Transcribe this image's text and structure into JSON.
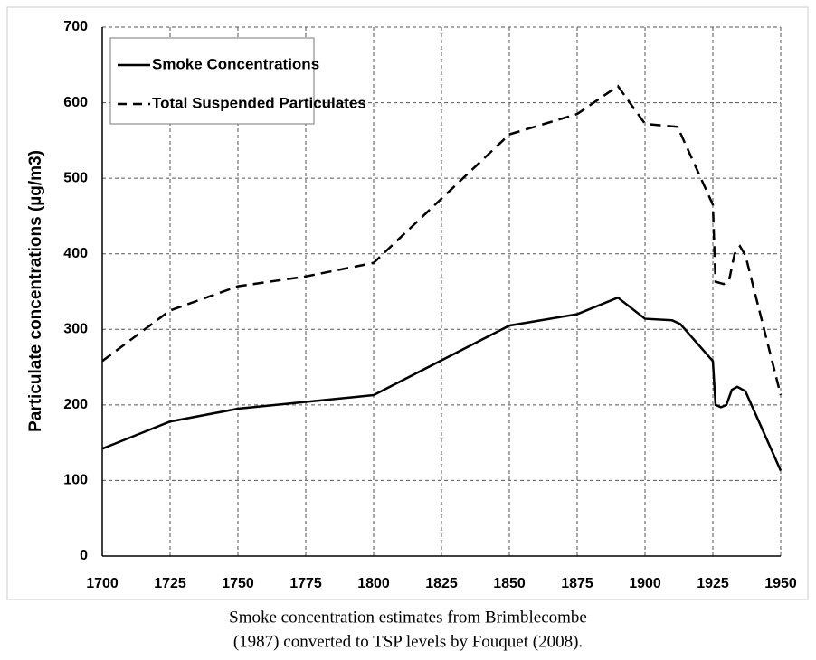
{
  "chart_data": {
    "type": "line",
    "y_label": "Particulate concentrations (µg/m3)",
    "caption": [
      "Smoke concentration estimates from Brimblecombe",
      "(1987) converted to TSP levels by Fouquet (2008)."
    ],
    "xlim": [
      1700,
      1950
    ],
    "xticks": [
      1700,
      1725,
      1750,
      1775,
      1800,
      1825,
      1850,
      1875,
      1900,
      1925,
      1950
    ],
    "ylim": [
      0,
      700
    ],
    "yticks": [
      0,
      100,
      200,
      300,
      400,
      500,
      600,
      700
    ],
    "grid": true,
    "legend": "upper left",
    "series": [
      {
        "name": "Smoke Concentrations",
        "color": "#000000",
        "dash": false,
        "x": [
          1700,
          1725,
          1750,
          1800,
          1850,
          1875,
          1890,
          1900,
          1910,
          1913,
          1925,
          1926,
          1928,
          1930,
          1932,
          1934,
          1937,
          1950
        ],
        "values": [
          142,
          178,
          195,
          213,
          305,
          320,
          342,
          314,
          312,
          307,
          258,
          200,
          197,
          200,
          220,
          224,
          218,
          113
        ]
      },
      {
        "name": "Total Suspended Particulates",
        "color": "#000000",
        "dash": true,
        "x": [
          1700,
          1725,
          1750,
          1775,
          1800,
          1850,
          1875,
          1890,
          1900,
          1912,
          1925,
          1926,
          1929,
          1931,
          1933,
          1935,
          1937,
          1950
        ],
        "values": [
          258,
          325,
          357,
          370,
          388,
          558,
          585,
          622,
          572,
          568,
          465,
          363,
          360,
          365,
          400,
          410,
          398,
          213
        ]
      }
    ]
  }
}
